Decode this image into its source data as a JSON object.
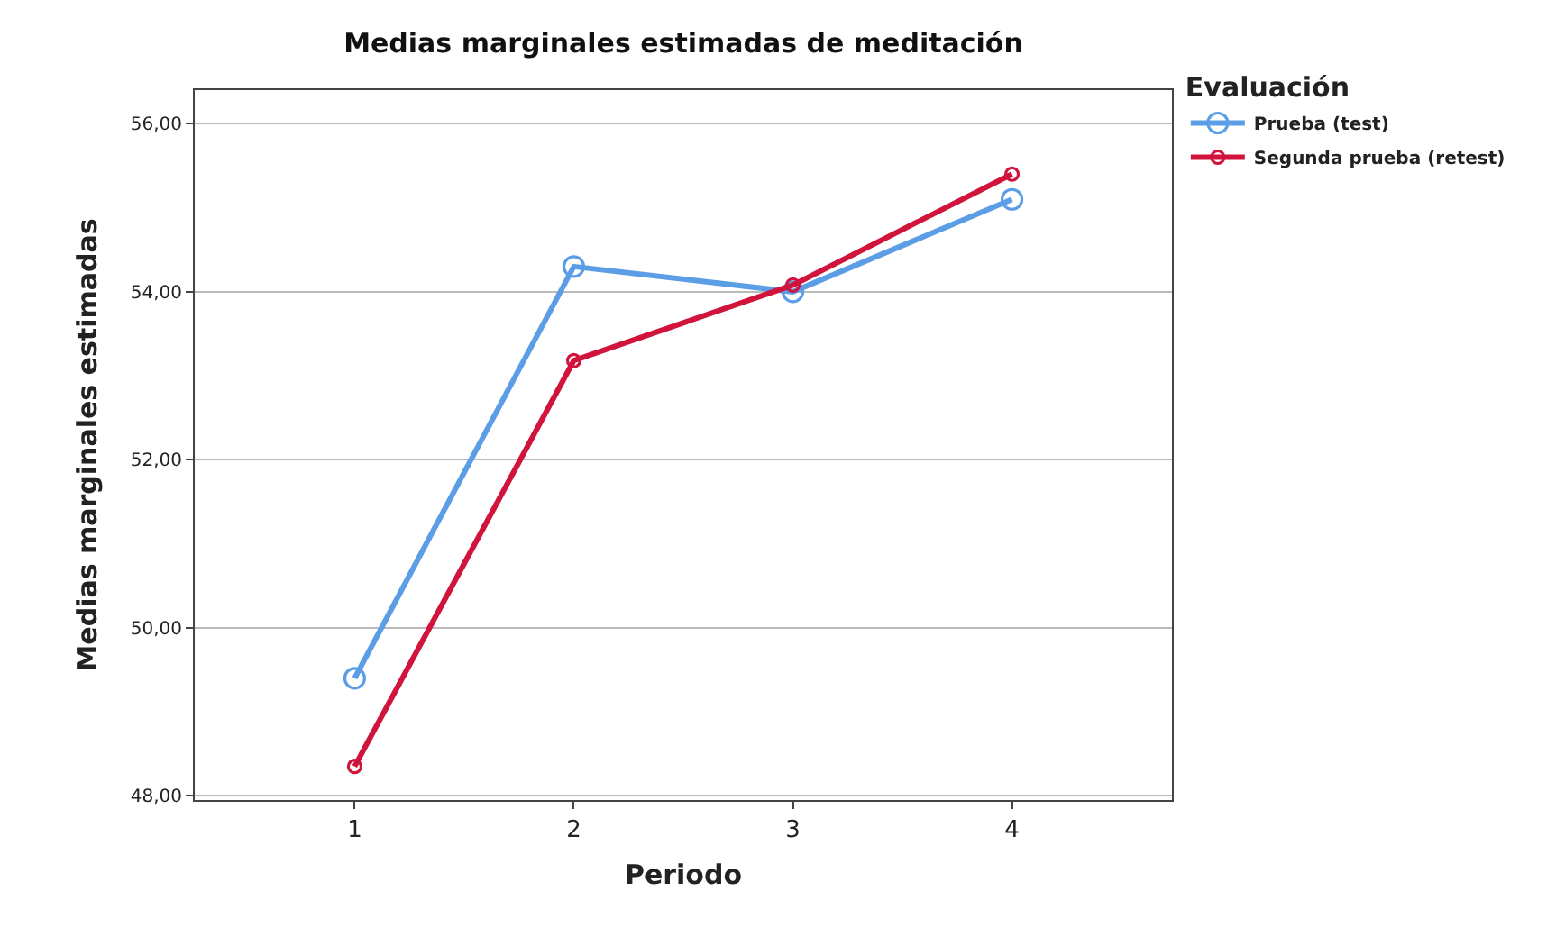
{
  "chart_data": {
    "type": "line",
    "title": "Medias marginales estimadas de meditación",
    "xlabel": "Periodo",
    "ylabel": "Medias marginales estimadas",
    "legend_title": "Evaluación",
    "x": [
      1,
      2,
      3,
      4
    ],
    "series": [
      {
        "name": "Prueba (test)",
        "color": "#5b9ee6",
        "values": [
          49.4,
          54.3,
          54.0,
          55.1
        ]
      },
      {
        "name": "Segunda prueba (retest)",
        "color": "#d0143c",
        "values": [
          48.35,
          53.18,
          54.08,
          55.4
        ]
      }
    ],
    "xlim": [
      0.27,
      4.73
    ],
    "xticks": [
      1,
      2,
      3,
      4
    ],
    "ylim": [
      47.95,
      56.4
    ],
    "yticks": [
      {
        "value": 48,
        "label": "48,00"
      },
      {
        "value": 50,
        "label": "50,00"
      },
      {
        "value": 52,
        "label": "52,00"
      },
      {
        "value": 54,
        "label": "54,00"
      },
      {
        "value": 56,
        "label": "56,00"
      }
    ],
    "grid": "y",
    "legend": "top right",
    "marker": "circle",
    "line_style": "solid"
  }
}
